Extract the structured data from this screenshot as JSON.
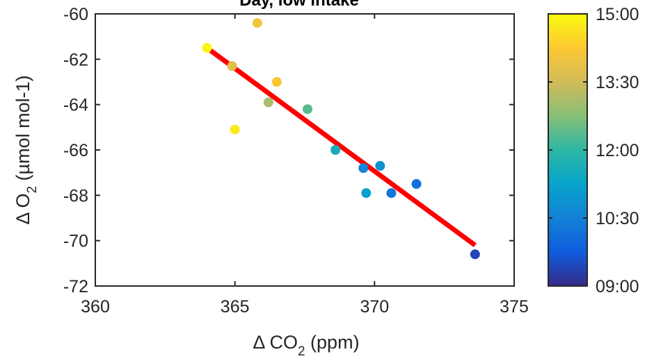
{
  "chart_data": {
    "type": "scatter",
    "title": "Day, low intake",
    "xlabel": "Δ  CO",
    "xlabel_sub": "2",
    "xlabel_unit": " (ppm)",
    "ylabel": "Δ O",
    "ylabel_sub": "2",
    "ylabel_unit": " (µmol mol-1)",
    "xlim": [
      360,
      375
    ],
    "ylim": [
      -72,
      -60
    ],
    "x_ticks": [
      360,
      365,
      370,
      375
    ],
    "x_tick_labels": [
      "360",
      "365",
      "370",
      "375"
    ],
    "y_ticks": [
      -60,
      -62,
      -64,
      -66,
      -68,
      -70,
      -72
    ],
    "y_tick_labels": [
      "-60",
      "-62",
      "-64",
      "-66",
      "-68",
      "-70",
      "-72"
    ],
    "grid": false,
    "points": [
      {
        "x": 364.0,
        "y": -61.5,
        "time": "14:55"
      },
      {
        "x": 365.8,
        "y": -60.4,
        "time": "14:05"
      },
      {
        "x": 364.9,
        "y": -62.3,
        "time": "13:45"
      },
      {
        "x": 366.5,
        "y": -63.0,
        "time": "14:10"
      },
      {
        "x": 366.2,
        "y": -63.9,
        "time": "13:05"
      },
      {
        "x": 365.0,
        "y": -65.1,
        "time": "14:45"
      },
      {
        "x": 367.6,
        "y": -64.2,
        "time": "12:20"
      },
      {
        "x": 368.6,
        "y": -66.0,
        "time": "11:35"
      },
      {
        "x": 369.6,
        "y": -66.8,
        "time": "10:35"
      },
      {
        "x": 370.2,
        "y": -66.7,
        "time": "10:55"
      },
      {
        "x": 369.7,
        "y": -67.9,
        "time": "11:10"
      },
      {
        "x": 370.6,
        "y": -67.9,
        "time": "10:15"
      },
      {
        "x": 371.5,
        "y": -67.5,
        "time": "10:10"
      },
      {
        "x": 373.6,
        "y": -70.6,
        "time": "09:25"
      }
    ],
    "fit_line": {
      "x": [
        364.0,
        373.6
      ],
      "y": [
        -61.5,
        -70.2
      ],
      "color": "#ff0000"
    },
    "colorbar": {
      "tick_labels": [
        "15:00",
        "13:30",
        "12:00",
        "10:30",
        "09:00"
      ],
      "min_time": "09:00",
      "max_time": "15:00",
      "colors": [
        "#352a87",
        "#0f5cdd",
        "#1481d6",
        "#06a4ca",
        "#2eb7a4",
        "#87bf77",
        "#d1bb59",
        "#fec832",
        "#f9fb0e"
      ]
    }
  }
}
